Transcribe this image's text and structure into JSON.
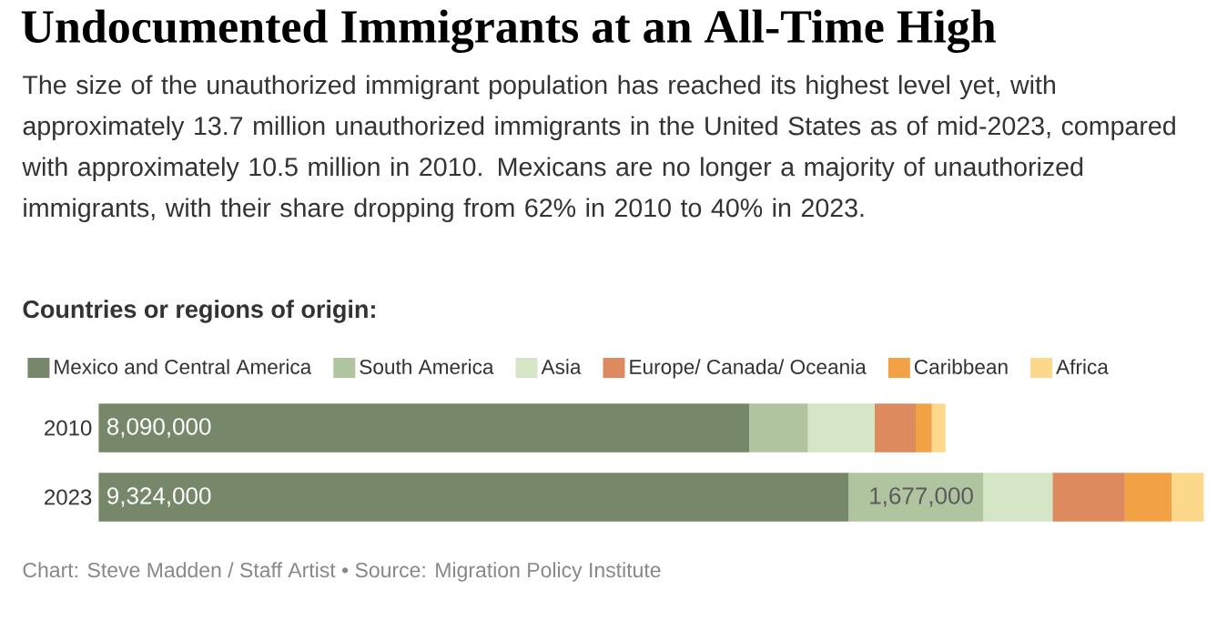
{
  "chart_data": {
    "type": "bar",
    "orientation": "horizontal",
    "stacked": true,
    "title": "Undocumented Immigrants at an All-Time High",
    "subtitle": "The size of the unauthorized immigrant population has reached its highest level yet, with approximately 13.7 million unauthorized immigrants in the United States as of mid-2023, compared with approximately 10.5 million in 2010. Mexicans are no longer a majority of unauthorized immigrants, with their share dropping from 62% in 2010 to 40% in 2023.",
    "legend_title": "Countries or regions of origin:",
    "categories": [
      "2010",
      "2023"
    ],
    "series": [
      {
        "name": "Mexico and Central America",
        "color": "#76876a",
        "values": [
          8090000,
          9324000
        ],
        "value_labels": [
          "8,090,000",
          "9,324,000"
        ]
      },
      {
        "name": "South America",
        "color": "#b0c4a0",
        "values": [
          730000,
          1677000
        ],
        "value_labels": [
          null,
          "1,677,000"
        ]
      },
      {
        "name": "Asia",
        "color": "#d5e6c6",
        "values": [
          830000,
          860000
        ]
      },
      {
        "name": "Europe/ Canada/ Oceania",
        "color": "#dd8a5e",
        "values": [
          510000,
          900000
        ]
      },
      {
        "name": "Caribbean",
        "color": "#f2a245",
        "values": [
          200000,
          580000
        ]
      },
      {
        "name": "Africa",
        "color": "#fcd98a",
        "values": [
          170000,
          400000
        ]
      }
    ],
    "legend": "top",
    "tick_labels": "y",
    "annotations": [
      "Chart: Steve Madden / Staff Artist • Source: Migration Policy Institute"
    ]
  }
}
